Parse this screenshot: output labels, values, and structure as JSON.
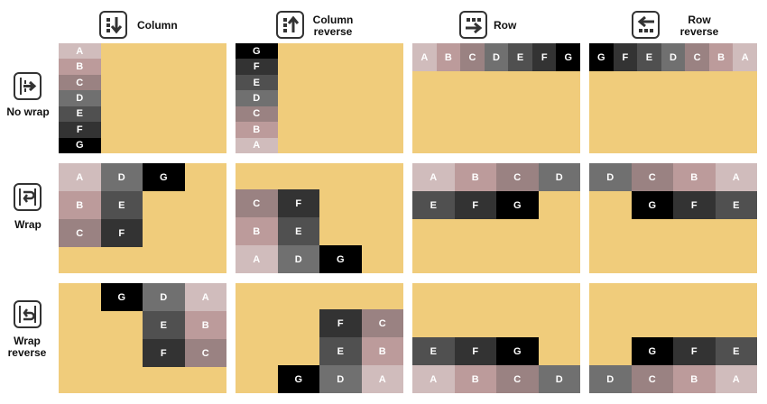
{
  "columns": [
    {
      "label": "Column",
      "direction": "column",
      "icon": "arrow-down-icon"
    },
    {
      "label": "Column reverse",
      "direction": "column-reverse",
      "icon": "arrow-up-icon"
    },
    {
      "label": "Row",
      "direction": "row",
      "icon": "arrow-right-icon"
    },
    {
      "label": "Row reverse",
      "direction": "row-reverse",
      "icon": "arrow-left-icon"
    }
  ],
  "rows": [
    {
      "label": "No wrap",
      "wrap": "nowrap",
      "icon": "no-wrap-icon"
    },
    {
      "label": "Wrap",
      "wrap": "wrap",
      "icon": "wrap-icon"
    },
    {
      "label": "Wrap reverse",
      "wrap": "wrap-reverse",
      "icon": "wrap-reverse-icon"
    }
  ],
  "items": [
    {
      "label": "A",
      "color": "#d0bcbc"
    },
    {
      "label": "B",
      "color": "#bc9b9b"
    },
    {
      "label": "C",
      "color": "#9a8282"
    },
    {
      "label": "D",
      "color": "#707070"
    },
    {
      "label": "E",
      "color": "#505050"
    },
    {
      "label": "F",
      "color": "#333333"
    },
    {
      "label": "G",
      "color": "#000000"
    }
  ],
  "container_color": "#f0cc7b"
}
